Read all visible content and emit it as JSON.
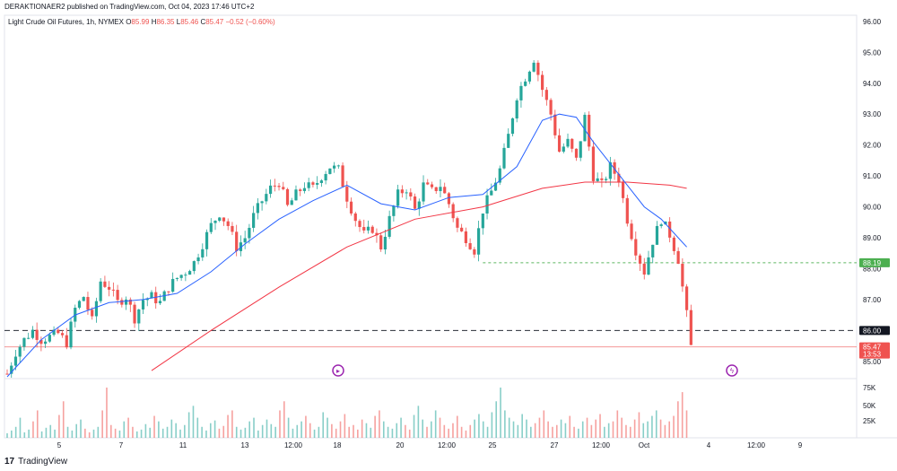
{
  "header": {
    "published": "DERAKTIONAER2 published on TradingView.com, Oct 04, 2023 17:46 UTC+2"
  },
  "legend": {
    "symbol": "Light Crude Oil Futures, 1h, NYMEX",
    "o_label": "O",
    "o_value": "85.99",
    "h_label": "H",
    "h_value": "86.35",
    "l_label": "L",
    "l_value": "85.46",
    "c_label": "C",
    "c_value": "85.47",
    "change": "−0.52 (−0.60%)"
  },
  "footer": {
    "logo_text": "TradingView",
    "logo_mark": "17"
  },
  "colors": {
    "up": "#26a69a",
    "down": "#ef5350",
    "ma_fast": "#2962ff",
    "ma_slow": "#f23645",
    "dotted_level": "#4caf50",
    "dashed_level": "#131722",
    "annotation": "#9c27b0"
  },
  "annotations": [
    "play-circle-icon",
    "lightning-circle-icon"
  ],
  "chart_data": {
    "type": "candlestick",
    "y_ticks": [
      "96.00",
      "95.00",
      "94.00",
      "93.00",
      "92.00",
      "91.00",
      "90.00",
      "89.00",
      "88.00",
      "87.00",
      "86.00",
      "85.00"
    ],
    "ylim": [
      84.5,
      96.2
    ],
    "x_ticks": [
      "5",
      "7",
      "11",
      "13",
      "12:00",
      "18",
      "20",
      "12:00",
      "25",
      "27",
      "12:00",
      "Oct",
      "4",
      "12:00",
      "9"
    ],
    "volume_ticks": [
      "75K",
      "50K",
      "25K"
    ],
    "price_labels": [
      {
        "text": "88.19",
        "value": 88.19,
        "color": "#4caf50"
      },
      {
        "text": "86.00",
        "value": 86.0,
        "color": "#131722"
      },
      {
        "text": "85.47",
        "sub": "13:53",
        "value": 85.47,
        "color": "#ef5350"
      }
    ],
    "levels": [
      {
        "value": 88.19,
        "style": "dotted",
        "color": "#4caf50"
      },
      {
        "value": 86.0,
        "style": "dashed",
        "color": "#131722"
      },
      {
        "value": 85.47,
        "style": "solid",
        "color": "#ef5350"
      }
    ],
    "price_path": [
      [
        0,
        84.6
      ],
      [
        2,
        85.3
      ],
      [
        4,
        85.7
      ],
      [
        6,
        86.0
      ],
      [
        8,
        85.7
      ],
      [
        10,
        85.8
      ],
      [
        12,
        85.9
      ],
      [
        14,
        85.6
      ],
      [
        16,
        86.7
      ],
      [
        18,
        87.1
      ],
      [
        20,
        86.3
      ],
      [
        22,
        87.6
      ],
      [
        24,
        87.4
      ],
      [
        26,
        86.9
      ],
      [
        28,
        87.1
      ],
      [
        30,
        86.4
      ],
      [
        32,
        87.0
      ],
      [
        34,
        87.1
      ],
      [
        36,
        86.9
      ],
      [
        38,
        87.4
      ],
      [
        40,
        87.7
      ],
      [
        42,
        87.9
      ],
      [
        44,
        88.2
      ],
      [
        46,
        88.8
      ],
      [
        48,
        89.4
      ],
      [
        50,
        89.8
      ],
      [
        52,
        89.4
      ],
      [
        54,
        88.7
      ],
      [
        56,
        89.0
      ],
      [
        58,
        89.7
      ],
      [
        60,
        90.2
      ],
      [
        62,
        90.6
      ],
      [
        64,
        90.8
      ],
      [
        66,
        90.0
      ],
      [
        68,
        90.4
      ],
      [
        70,
        90.7
      ],
      [
        72,
        90.6
      ],
      [
        74,
        91.0
      ],
      [
        76,
        91.3
      ],
      [
        78,
        91.2
      ],
      [
        80,
        90.3
      ],
      [
        82,
        89.6
      ],
      [
        84,
        89.1
      ],
      [
        86,
        89.3
      ],
      [
        88,
        88.7
      ],
      [
        90,
        89.6
      ],
      [
        92,
        90.4
      ],
      [
        94,
        90.6
      ],
      [
        96,
        89.9
      ],
      [
        98,
        90.7
      ],
      [
        100,
        90.5
      ],
      [
        102,
        90.7
      ],
      [
        104,
        90.1
      ],
      [
        106,
        89.3
      ],
      [
        108,
        89.0
      ],
      [
        110,
        88.6
      ],
      [
        112,
        89.9
      ],
      [
        114,
        90.5
      ],
      [
        116,
        91.2
      ],
      [
        118,
        92.3
      ],
      [
        120,
        93.6
      ],
      [
        122,
        94.2
      ],
      [
        124,
        94.8
      ],
      [
        126,
        93.8
      ],
      [
        128,
        93.0
      ],
      [
        130,
        91.8
      ],
      [
        132,
        92.1
      ],
      [
        134,
        91.5
      ],
      [
        136,
        92.9
      ],
      [
        138,
        91.0
      ],
      [
        140,
        90.7
      ],
      [
        142,
        91.3
      ],
      [
        144,
        90.9
      ],
      [
        146,
        89.6
      ],
      [
        148,
        88.6
      ],
      [
        150,
        87.9
      ],
      [
        152,
        88.9
      ],
      [
        154,
        89.6
      ],
      [
        156,
        89.1
      ],
      [
        158,
        88.3
      ],
      [
        160,
        86.5
      ],
      [
        161,
        85.47
      ]
    ],
    "ma_fast": [
      [
        0,
        84.5
      ],
      [
        8,
        85.7
      ],
      [
        16,
        86.5
      ],
      [
        24,
        86.9
      ],
      [
        32,
        87.0
      ],
      [
        40,
        87.2
      ],
      [
        48,
        87.9
      ],
      [
        56,
        88.8
      ],
      [
        64,
        89.6
      ],
      [
        72,
        90.2
      ],
      [
        80,
        90.7
      ],
      [
        88,
        90.1
      ],
      [
        96,
        89.9
      ],
      [
        104,
        90.3
      ],
      [
        112,
        90.4
      ],
      [
        120,
        91.3
      ],
      [
        126,
        92.8
      ],
      [
        130,
        93.0
      ],
      [
        134,
        92.9
      ],
      [
        138,
        92.1
      ],
      [
        142,
        91.4
      ],
      [
        146,
        90.7
      ],
      [
        150,
        90.0
      ],
      [
        154,
        89.6
      ],
      [
        158,
        89.0
      ],
      [
        160,
        88.7
      ]
    ],
    "ma_slow": [
      [
        34,
        84.7
      ],
      [
        48,
        86.0
      ],
      [
        64,
        87.4
      ],
      [
        80,
        88.7
      ],
      [
        96,
        89.6
      ],
      [
        112,
        90.0
      ],
      [
        126,
        90.6
      ],
      [
        136,
        90.8
      ],
      [
        146,
        90.8
      ],
      [
        156,
        90.7
      ],
      [
        160,
        90.6
      ]
    ],
    "volume": [
      5,
      8,
      12,
      22,
      6,
      9,
      18,
      30,
      7,
      11,
      14,
      9,
      25,
      40,
      12,
      8,
      15,
      20,
      10,
      6,
      9,
      12,
      30,
      55,
      14,
      10,
      8,
      18,
      22,
      12,
      7,
      9,
      15,
      11,
      24,
      18,
      10,
      12,
      20,
      16,
      9,
      14,
      28,
      35,
      22,
      12,
      8,
      16,
      19,
      10,
      13,
      25,
      30,
      12,
      9,
      11,
      18,
      22,
      8,
      14,
      20,
      15,
      12,
      30,
      40,
      22,
      10,
      14,
      18,
      24,
      16,
      9,
      12,
      28,
      22,
      15,
      10,
      18,
      26,
      12,
      14,
      9,
      20,
      16,
      11,
      24,
      30,
      18,
      12,
      10,
      16,
      22,
      14,
      9,
      25,
      35,
      20,
      12,
      18,
      30,
      22,
      14,
      10,
      16,
      24,
      12,
      8,
      14,
      20,
      26,
      18,
      12,
      28,
      40,
      55,
      30,
      22,
      18,
      14,
      26,
      20,
      12,
      16,
      22,
      30,
      18,
      12,
      14,
      20,
      16,
      24,
      12,
      10,
      18,
      22,
      14,
      20,
      26,
      12,
      16,
      18,
      30,
      22,
      14,
      12,
      20,
      28,
      16,
      18,
      24,
      30,
      20,
      14,
      18,
      24,
      40,
      50,
      30
    ]
  }
}
